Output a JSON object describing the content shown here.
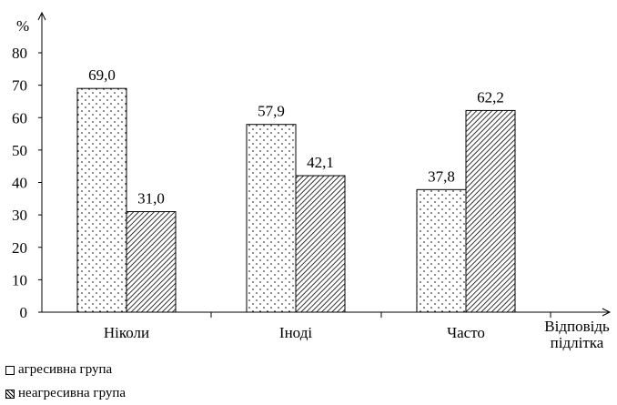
{
  "chart_data": {
    "type": "bar",
    "categories": [
      "Ніколи",
      "Іноді",
      "Часто"
    ],
    "series": [
      {
        "name": "агресивна група",
        "values": [
          69.0,
          57.9,
          37.8
        ],
        "labels": [
          "69,0",
          "57,9",
          "37,8"
        ]
      },
      {
        "name": "неагресивна група",
        "values": [
          31.0,
          42.1,
          62.2
        ],
        "labels": [
          "31,0",
          "42,1",
          "62,2"
        ]
      }
    ],
    "ylabel": "%",
    "xlabel": [
      "Відповідь",
      "підлітка"
    ],
    "ylim": [
      0,
      80
    ],
    "yticks": [
      "0",
      "10",
      "20",
      "30",
      "40",
      "50",
      "60",
      "70",
      "80"
    ],
    "grid": false,
    "legend_position": "bottom-left"
  }
}
